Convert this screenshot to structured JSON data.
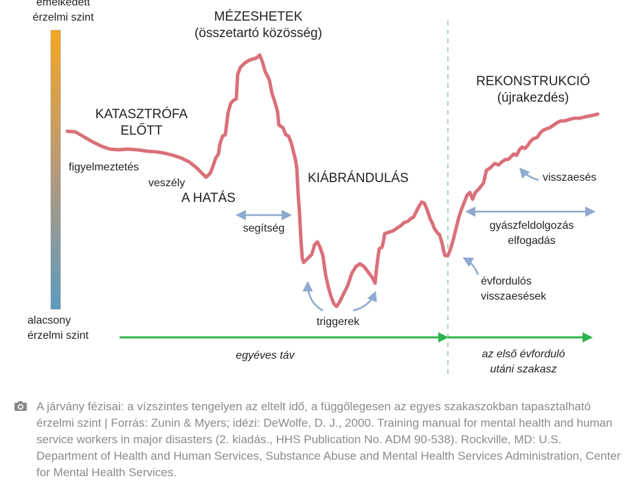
{
  "diagram": {
    "scale_top": "emelkedett\nérzelmi szint",
    "scale_bottom": "alacsony\nérzelmi szint",
    "phase_before": "KATASZTRÓFA\nELŐTT",
    "warning": "figyelmeztetés",
    "threat": "veszély",
    "impact": "A HATÁS",
    "honeymoon": "MÉZESHETEK\n(összetartó közösség)",
    "help": "segítség",
    "disillusionment": "KIÁBRÁNDULÁS",
    "triggers": "triggerek",
    "reconstruction": "REKONSTRUKCIÓ\n(újrakezdés)",
    "relapse": "visszaesés",
    "grief": "gyászfeldolgozás\nelfogadás",
    "anniversary": "évfordulós\nvisszaesések",
    "one_year": "egyéves táv",
    "after_anniversary": "az első évforduló\nutáni szakasz",
    "colors": {
      "curve": "#d9707a",
      "blue_arrows": "#8fa9cf",
      "green_arrow": "#2db34a",
      "dashed_line": "#a8d8b0",
      "scale_top": "#f5a623",
      "scale_bottom": "#5b9bbf"
    }
  },
  "caption": {
    "icon": "camera-icon",
    "text": "A járvány fézisai: a vízszintes tengelyen az eltelt idő, a függőlegesen az egyes szakaszokban tapasztalható érzelmi szint  |  Forrás: Zunin & Myers; idézi: DeWolfe, D. J., 2000. Training manual for mental health and human service workers in major disasters (2. kiadás., HHS Publication No. ADM 90-538). Rockville, MD: U.S. Department of Health and Human Services, Substance Abuse and Mental Health Services Administration, Center for Mental Health Services."
  }
}
